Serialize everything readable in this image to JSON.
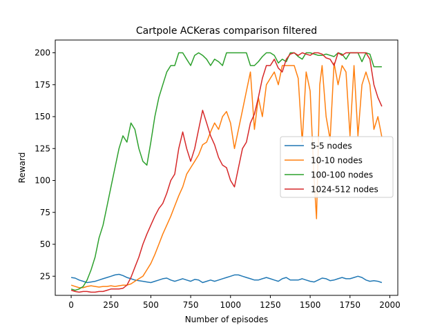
{
  "chart_data": {
    "type": "line",
    "title": "Cartpole ACKeras comparison filtered",
    "xlabel": "Number of episodes",
    "ylabel": "Reward",
    "xlim": [
      -100,
      2050
    ],
    "ylim": [
      10,
      210
    ],
    "xticks": [
      0,
      250,
      500,
      750,
      1000,
      1250,
      1500,
      1750,
      2000
    ],
    "yticks": [
      25,
      50,
      75,
      100,
      125,
      150,
      175,
      200
    ],
    "grid": false,
    "legend_position": "center-right",
    "series": [
      {
        "name": "5-5 nodes",
        "color": "#1f77b4",
        "x": [
          0,
          25,
          50,
          75,
          100,
          125,
          150,
          175,
          200,
          225,
          250,
          275,
          300,
          325,
          350,
          375,
          400,
          425,
          450,
          475,
          500,
          525,
          550,
          575,
          600,
          625,
          650,
          675,
          700,
          725,
          750,
          775,
          800,
          825,
          850,
          875,
          900,
          925,
          950,
          975,
          1000,
          1025,
          1050,
          1075,
          1100,
          1125,
          1150,
          1175,
          1200,
          1225,
          1250,
          1275,
          1300,
          1325,
          1350,
          1375,
          1400,
          1425,
          1450,
          1475,
          1500,
          1525,
          1550,
          1575,
          1600,
          1625,
          1650,
          1675,
          1700,
          1725,
          1750,
          1775,
          1800,
          1825,
          1850,
          1875,
          1900,
          1925,
          1950
        ],
        "y": [
          24,
          23.5,
          22,
          21,
          20,
          20.5,
          21,
          22,
          23,
          24,
          25,
          26,
          26.5,
          25.5,
          24,
          23,
          22,
          21.5,
          21,
          20.5,
          20,
          21,
          22,
          23,
          23.5,
          22,
          21,
          22,
          23,
          22,
          21,
          22.5,
          22,
          20,
          21,
          22,
          21,
          22,
          23,
          24,
          25,
          26,
          26,
          25,
          24,
          23,
          22,
          22,
          23,
          24,
          23,
          22,
          21,
          23,
          24,
          22,
          22,
          22,
          23,
          22,
          21,
          20.5,
          22,
          23.5,
          23,
          21.5,
          22,
          23,
          24,
          23,
          23,
          24,
          25,
          24,
          22,
          21,
          21.5,
          21,
          20
        ]
      },
      {
        "name": "10-10 nodes",
        "color": "#ff7f0e",
        "x": [
          0,
          25,
          50,
          75,
          100,
          125,
          150,
          175,
          200,
          225,
          250,
          275,
          300,
          325,
          350,
          375,
          400,
          425,
          450,
          475,
          500,
          525,
          550,
          575,
          600,
          625,
          650,
          675,
          700,
          725,
          750,
          775,
          800,
          825,
          850,
          875,
          900,
          925,
          950,
          975,
          1000,
          1025,
          1050,
          1075,
          1100,
          1125,
          1150,
          1175,
          1200,
          1225,
          1250,
          1275,
          1300,
          1325,
          1350,
          1375,
          1400,
          1425,
          1450,
          1475,
          1500,
          1525,
          1540,
          1560,
          1575,
          1600,
          1625,
          1650,
          1675,
          1700,
          1725,
          1750,
          1775,
          1800,
          1825,
          1850,
          1875,
          1900,
          1925,
          1950
        ],
        "y": [
          18,
          17,
          16,
          16,
          17,
          17.5,
          17,
          16.5,
          17,
          17,
          17.5,
          17,
          17.5,
          18,
          18,
          19,
          21,
          23,
          25,
          30,
          35,
          42,
          50,
          58,
          65,
          72,
          80,
          88,
          95,
          105,
          110,
          115,
          120,
          128,
          130,
          138,
          145,
          140,
          150,
          154,
          145,
          125,
          140,
          155,
          170,
          185,
          140,
          165,
          150,
          175,
          180,
          185,
          175,
          190,
          190,
          190,
          190,
          180,
          130,
          185,
          170,
          100,
          70,
          175,
          190,
          150,
          132,
          192,
          175,
          190,
          185,
          135,
          190,
          135,
          175,
          185,
          175,
          140,
          150,
          134
        ]
      },
      {
        "name": "100-100 nodes",
        "color": "#2ca02c",
        "x": [
          0,
          25,
          50,
          75,
          100,
          125,
          150,
          175,
          200,
          225,
          250,
          275,
          300,
          325,
          350,
          375,
          400,
          425,
          450,
          475,
          500,
          525,
          550,
          575,
          600,
          625,
          650,
          675,
          700,
          725,
          750,
          775,
          800,
          825,
          850,
          875,
          900,
          925,
          950,
          975,
          1000,
          1025,
          1050,
          1075,
          1100,
          1125,
          1150,
          1175,
          1200,
          1225,
          1250,
          1275,
          1300,
          1325,
          1350,
          1375,
          1400,
          1425,
          1450,
          1475,
          1500,
          1525,
          1550,
          1575,
          1600,
          1625,
          1650,
          1675,
          1700,
          1725,
          1750,
          1775,
          1800,
          1825,
          1850,
          1875,
          1900,
          1925,
          1950
        ],
        "y": [
          15,
          14,
          15,
          17,
          22,
          30,
          40,
          55,
          65,
          80,
          95,
          110,
          125,
          135,
          130,
          145,
          140,
          125,
          115,
          112,
          130,
          150,
          165,
          175,
          185,
          190,
          190,
          200,
          200,
          195,
          190,
          198,
          200,
          198,
          195,
          190,
          195,
          193,
          190,
          200,
          200,
          200,
          200,
          200,
          200,
          190,
          190,
          193,
          197,
          200,
          200,
          198,
          192,
          195,
          193,
          200,
          200,
          197,
          195,
          200,
          200,
          199,
          198,
          198,
          199,
          198,
          197,
          200,
          199,
          195,
          200,
          200,
          200,
          193,
          200,
          199,
          189,
          189,
          189
        ]
      },
      {
        "name": "1024-512 nodes",
        "color": "#d62728",
        "x": [
          0,
          25,
          50,
          75,
          100,
          125,
          150,
          175,
          200,
          225,
          250,
          275,
          300,
          325,
          350,
          375,
          400,
          425,
          450,
          475,
          500,
          525,
          550,
          575,
          600,
          625,
          650,
          675,
          700,
          725,
          750,
          775,
          800,
          825,
          850,
          875,
          900,
          925,
          950,
          975,
          1000,
          1025,
          1050,
          1075,
          1100,
          1125,
          1150,
          1175,
          1200,
          1225,
          1250,
          1275,
          1300,
          1325,
          1350,
          1375,
          1400,
          1425,
          1450,
          1475,
          1500,
          1525,
          1550,
          1575,
          1600,
          1625,
          1650,
          1675,
          1700,
          1725,
          1750,
          1775,
          1800,
          1825,
          1850,
          1875,
          1900,
          1925,
          1950
        ],
        "y": [
          14,
          13,
          12.5,
          13,
          13,
          12.5,
          12.5,
          13,
          13,
          14,
          15,
          15,
          15,
          15.5,
          18,
          24,
          32,
          40,
          50,
          58,
          65,
          72,
          78,
          82,
          90,
          100,
          105,
          125,
          138,
          125,
          115,
          125,
          140,
          155,
          145,
          135,
          128,
          118,
          112,
          110,
          100,
          95,
          110,
          125,
          130,
          145,
          152,
          165,
          180,
          190,
          190,
          195,
          188,
          185,
          195,
          199,
          200,
          198,
          200,
          199,
          198,
          200,
          200,
          199,
          196,
          195,
          190,
          200,
          198,
          200,
          200,
          200,
          200,
          200,
          200,
          195,
          175,
          165,
          158
        ]
      }
    ]
  }
}
